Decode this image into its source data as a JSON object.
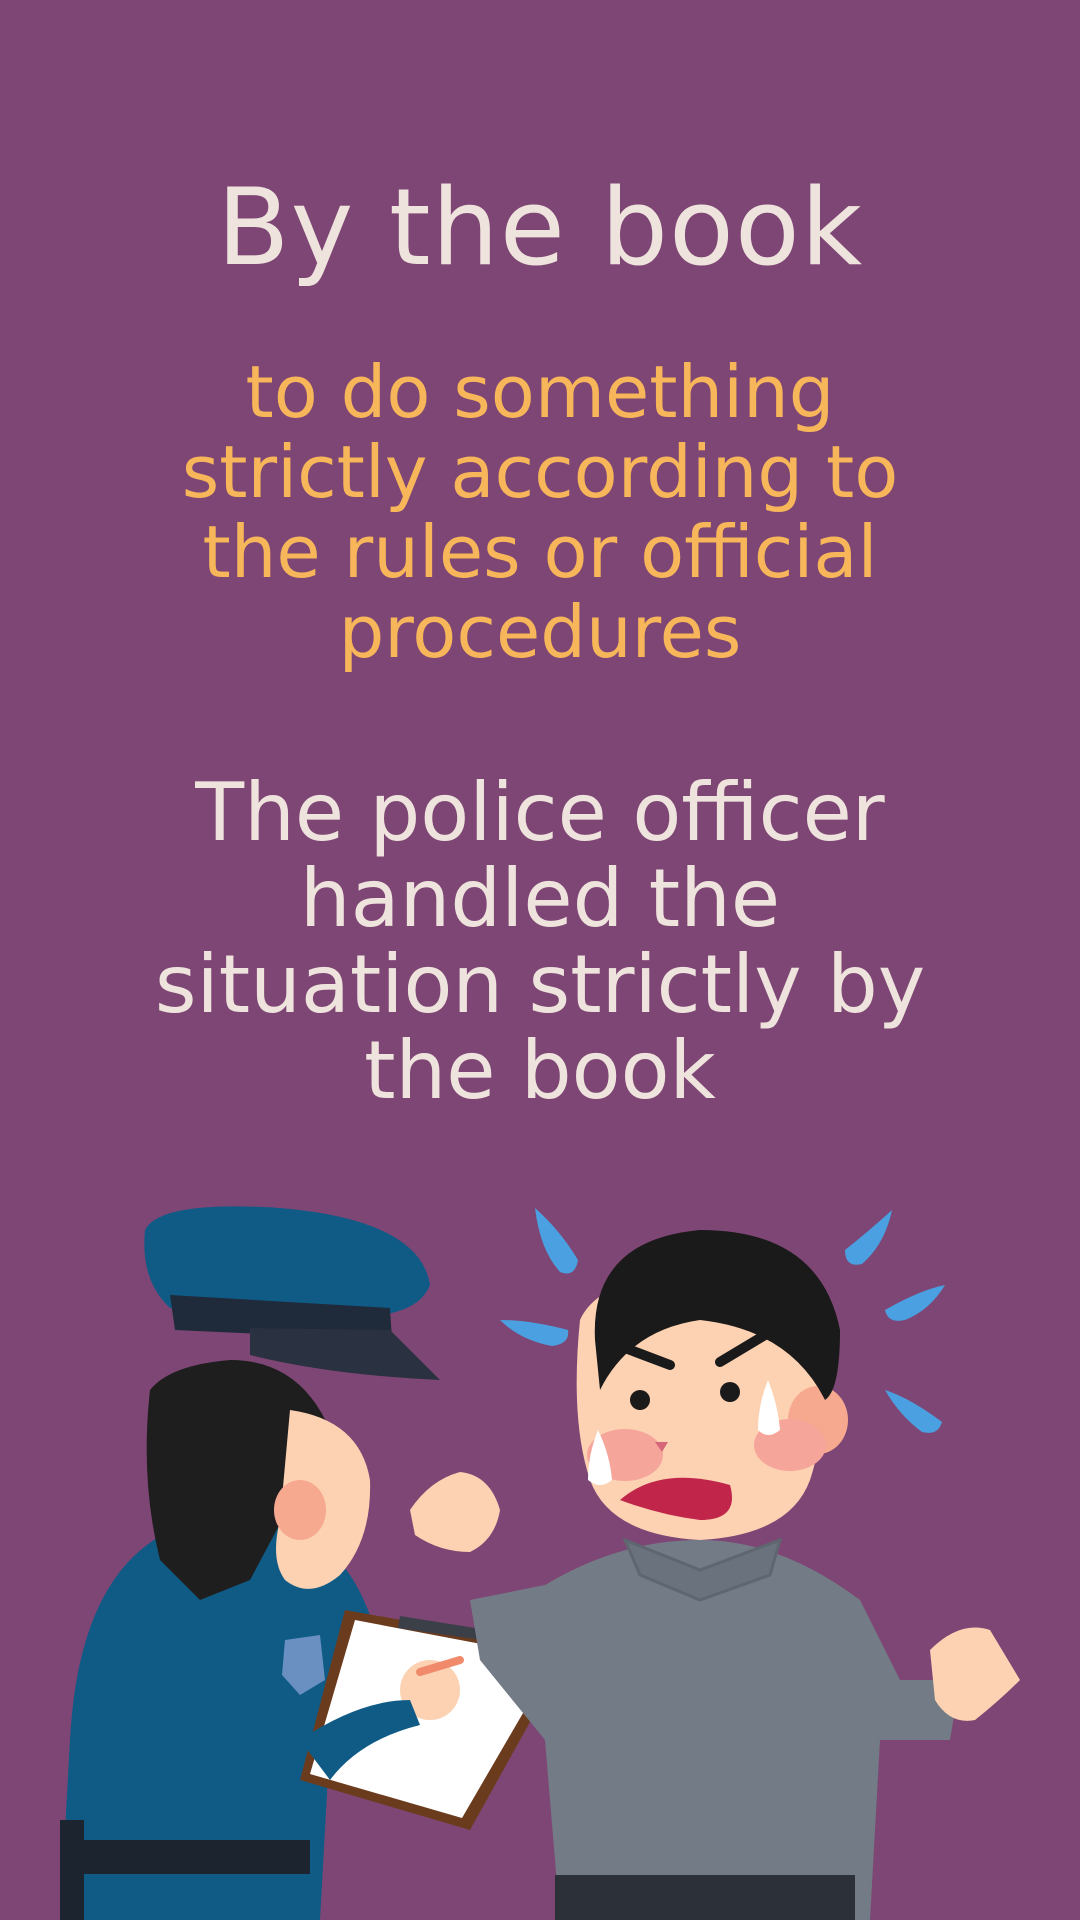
{
  "colors": {
    "background": "#7e4674",
    "title": "#efe4dd",
    "definition": "#f7b65a",
    "example": "#efe4dd"
  },
  "card": {
    "title": "By the book",
    "definition": "to do something strictly according to the rules or official procedures",
    "example": "The police officer handled the situation strictly by the book"
  },
  "illustration": {
    "subject": "police-officer-writing-on-clipboard-and-flustered-man"
  }
}
